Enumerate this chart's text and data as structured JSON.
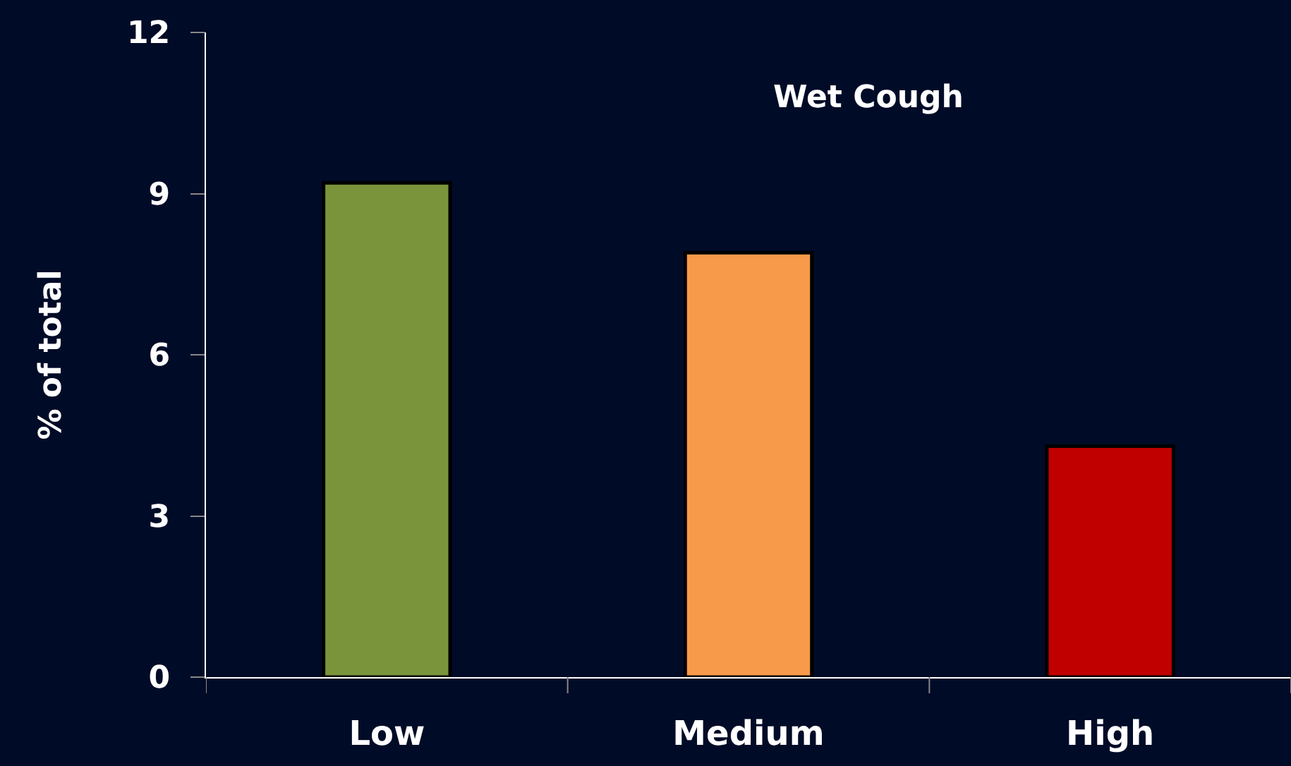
{
  "chart_data": {
    "type": "bar",
    "title": "Wet Cough",
    "ylabel": "% of total",
    "categories": [
      "Low",
      "Medium",
      "High"
    ],
    "values": [
      9.2,
      7.9,
      4.3
    ],
    "colors": [
      "#7a943c",
      "#f79a4a",
      "#c00000"
    ],
    "ylim": [
      0,
      12
    ],
    "yticks": [
      0,
      3,
      6,
      9,
      12
    ],
    "grid": false,
    "legend": false
  }
}
